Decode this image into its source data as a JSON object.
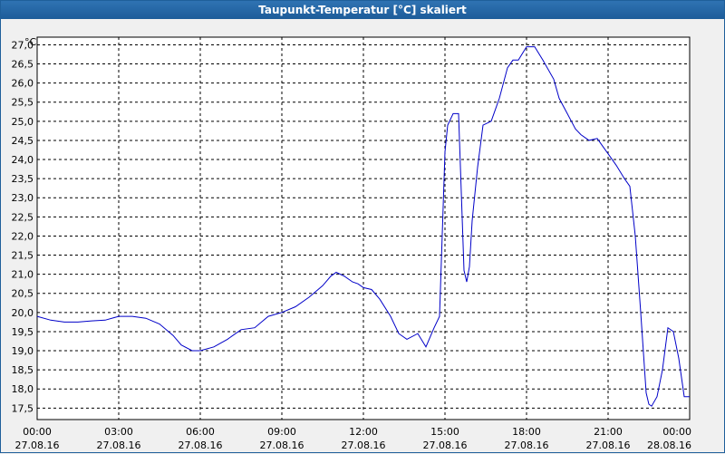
{
  "window": {
    "title": "Taupunkt-Temperatur [°C] skaliert"
  },
  "chart_data": {
    "type": "line",
    "title": "Taupunkt-Temperatur [°C] skaliert",
    "ylabel": "°C",
    "xlabel": "",
    "ylim": [
      17.2,
      27.2
    ],
    "xlim": [
      0,
      24
    ],
    "yticks": [
      17.5,
      18.0,
      18.5,
      19.0,
      19.5,
      20.0,
      20.5,
      21.0,
      21.5,
      22.0,
      22.5,
      23.0,
      23.5,
      24.0,
      24.5,
      25.0,
      25.5,
      26.0,
      26.5,
      27.0
    ],
    "ytick_labels": [
      "17,5",
      "18,0",
      "18,5",
      "19,0",
      "19,5",
      "20,0",
      "20,5",
      "21,0",
      "21,5",
      "22,0",
      "22,5",
      "23,0",
      "23,5",
      "24,0",
      "24,5",
      "25,0",
      "25,5",
      "26,0",
      "26,5",
      "27,0"
    ],
    "xticks": [
      0,
      3,
      6,
      9,
      12,
      15,
      18,
      21,
      24
    ],
    "xtick_labels": [
      [
        "00:00",
        "27.08.16"
      ],
      [
        "03:00",
        "27.08.16"
      ],
      [
        "06:00",
        "27.08.16"
      ],
      [
        "09:00",
        "27.08.16"
      ],
      [
        "12:00",
        "27.08.16"
      ],
      [
        "15:00",
        "27.08.16"
      ],
      [
        "18:00",
        "27.08.16"
      ],
      [
        "21:00",
        "27.08.16"
      ],
      [
        "00:00",
        "28.08.16"
      ]
    ],
    "grid": true,
    "series_color": "#0000c8",
    "series": [
      {
        "x": [
          0,
          0.5,
          1,
          1.5,
          2,
          2.5,
          3,
          3.5,
          4,
          4.5,
          5,
          5.3,
          5.7,
          6,
          6.5,
          7,
          7.5,
          8,
          8.5,
          9,
          9.5,
          10,
          10.5,
          10.8,
          11,
          11.3,
          11.6,
          11.8,
          12,
          12.3,
          12.6,
          13,
          13.3,
          13.6,
          14,
          14.3,
          14.6,
          14.8,
          15,
          15.1,
          15.3,
          15.5,
          15.7,
          15.8,
          15.9,
          16,
          16.2,
          16.4,
          16.7,
          17,
          17.3,
          17.5,
          17.7,
          18,
          18.3,
          18.6,
          19,
          19.2,
          19.5,
          19.8,
          20,
          20.3,
          20.6,
          20.8,
          21,
          21.3,
          21.6,
          21.8,
          22,
          22.2,
          22.4,
          22.5,
          22.6,
          22.8,
          23,
          23.2,
          23.4,
          23.6,
          23.8,
          24
        ],
        "y": [
          19.9,
          19.8,
          19.75,
          19.75,
          19.78,
          19.8,
          19.9,
          19.9,
          19.85,
          19.7,
          19.4,
          19.15,
          19.0,
          19.0,
          19.1,
          19.3,
          19.55,
          19.6,
          19.9,
          20.0,
          20.15,
          20.4,
          20.7,
          20.95,
          21.05,
          20.95,
          20.8,
          20.75,
          20.65,
          20.6,
          20.35,
          19.9,
          19.45,
          19.3,
          19.45,
          19.1,
          19.6,
          19.9,
          24.2,
          24.9,
          25.2,
          25.2,
          21.1,
          20.8,
          21.2,
          22.4,
          23.8,
          24.9,
          25.0,
          25.6,
          26.4,
          26.6,
          26.6,
          26.95,
          26.95,
          26.6,
          26.1,
          25.6,
          25.2,
          24.8,
          24.65,
          24.5,
          24.55,
          24.35,
          24.15,
          23.85,
          23.5,
          23.3,
          22.0,
          20.0,
          17.9,
          17.6,
          17.55,
          17.8,
          18.5,
          19.6,
          19.5,
          18.8,
          17.8,
          17.8
        ]
      }
    ]
  }
}
